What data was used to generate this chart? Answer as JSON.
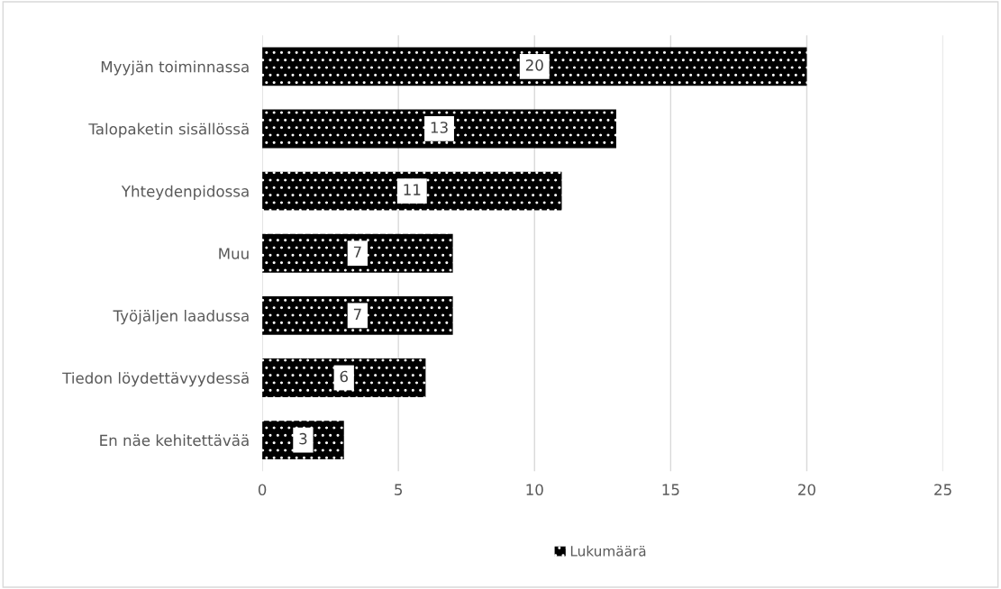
{
  "chart_data": {
    "type": "bar",
    "orientation": "horizontal",
    "categories": [
      "Myyjän toiminnassa",
      "Talopaketin sisällössä",
      "Yhteydenpidossa",
      "Muu",
      "Työjäljen laadussa",
      "Tiedon löydettävyydessä",
      "En näe kehitettävää"
    ],
    "series": [
      {
        "name": "Lukumäärä",
        "color": "#000000",
        "values": [
          20,
          13,
          11,
          7,
          7,
          6,
          3
        ]
      }
    ],
    "xlim": [
      0,
      25
    ],
    "xticks": [
      0,
      5,
      10,
      15,
      20,
      25
    ],
    "grid": "x",
    "legend": "bottom",
    "data_labels": true
  }
}
